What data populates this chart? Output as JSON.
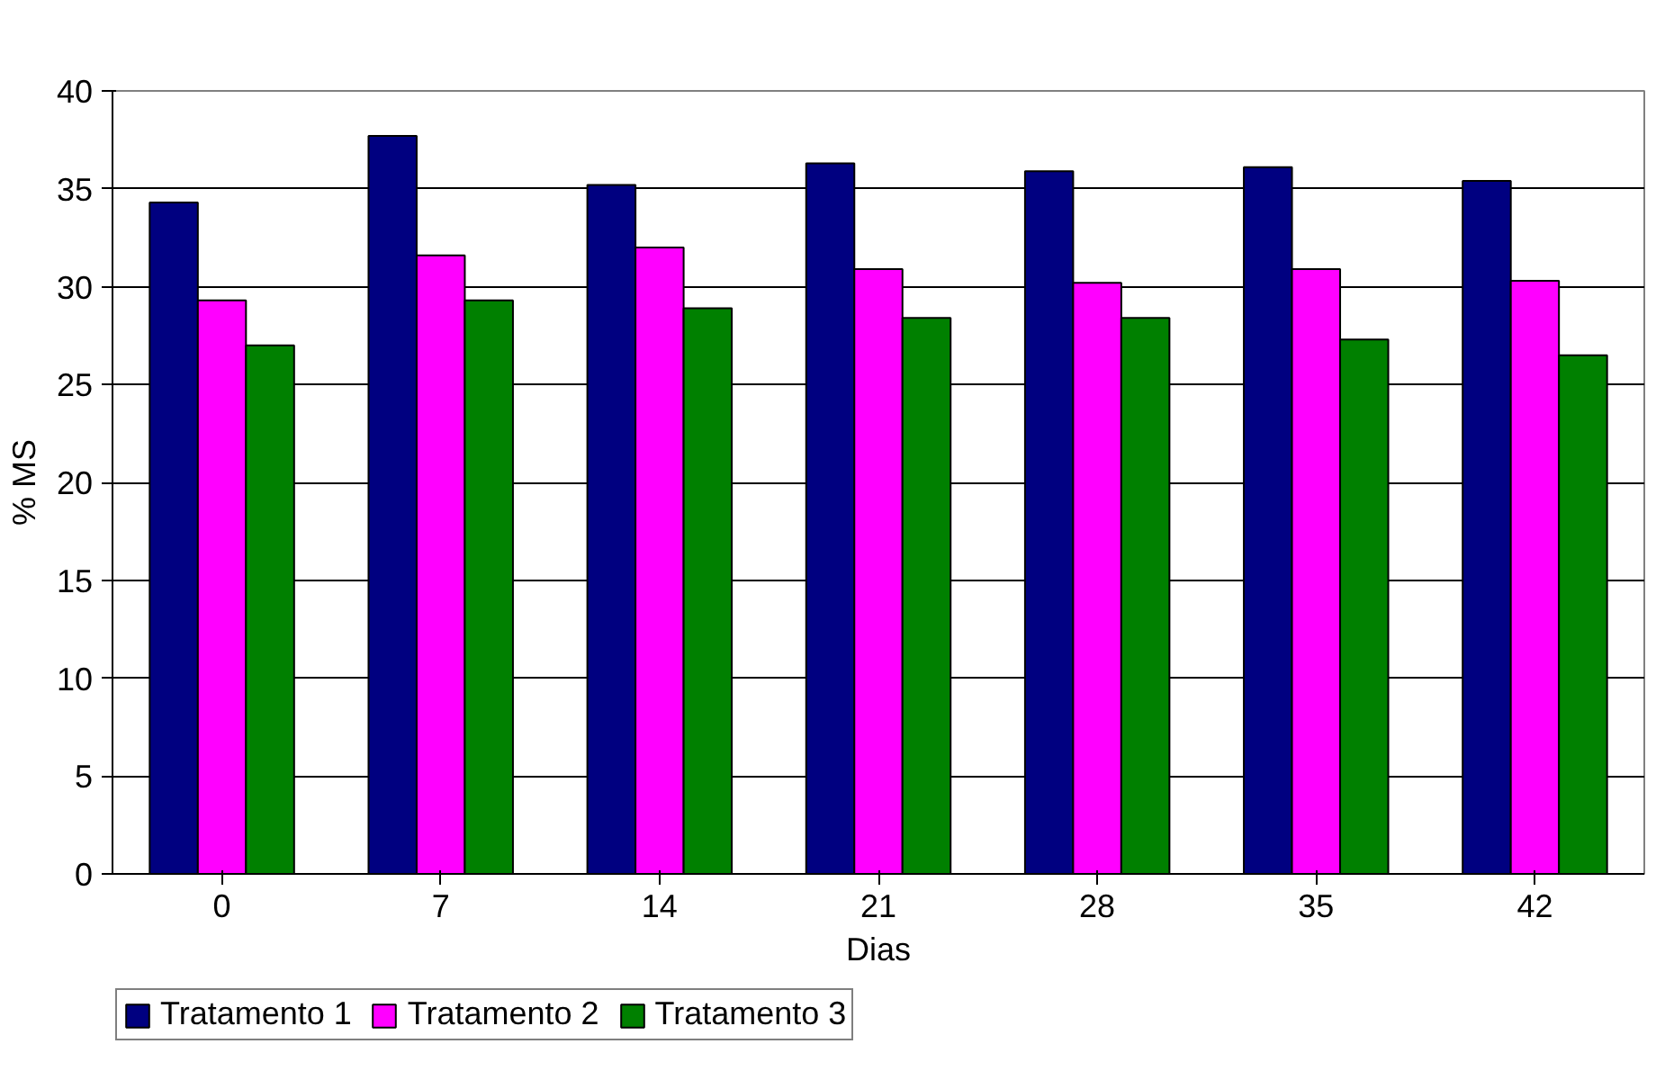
{
  "chart_data": {
    "type": "bar",
    "ylabel": "% MS",
    "xlabel": "Dias",
    "categories": [
      "0",
      "7",
      "14",
      "21",
      "28",
      "35",
      "42"
    ],
    "series": [
      {
        "name": "Tratamento 1",
        "color": "#000080",
        "values": [
          34.3,
          37.7,
          35.2,
          36.3,
          35.9,
          36.1,
          35.4
        ]
      },
      {
        "name": "Tratamento 2",
        "color": "#ff00ff",
        "values": [
          29.3,
          31.6,
          32.0,
          30.9,
          30.2,
          30.9,
          30.3
        ]
      },
      {
        "name": "Tratamento 3",
        "color": "#008000",
        "values": [
          27.0,
          29.3,
          28.9,
          28.4,
          28.4,
          27.3,
          26.5
        ]
      }
    ],
    "ylim": [
      0,
      40
    ],
    "yticks": [
      0,
      5,
      10,
      15,
      20,
      25,
      30,
      35,
      40
    ],
    "grid": "y",
    "legend": "bottom left"
  }
}
